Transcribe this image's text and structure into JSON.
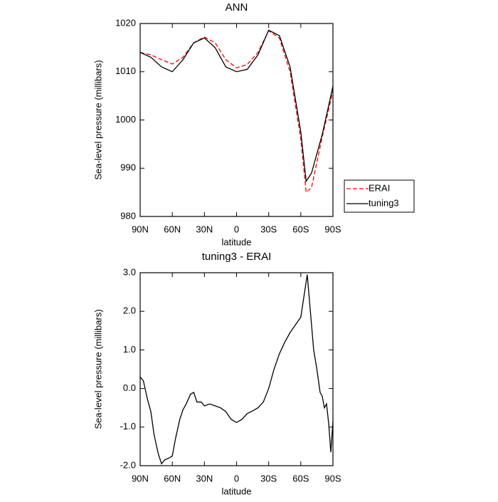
{
  "chart_data": [
    {
      "type": "line",
      "title": "ANN",
      "x_label": "latitude",
      "y_label": "Sea-level pressure (millibars)",
      "x": [
        90,
        80,
        70,
        60,
        50,
        40,
        30,
        20,
        10,
        0,
        -10,
        -20,
        -30,
        -40,
        -50,
        -60,
        -65,
        -70,
        -80,
        -90
      ],
      "xlim": [
        90,
        -90
      ],
      "xticks": [
        {
          "value": 90,
          "label": "90N"
        },
        {
          "value": 60,
          "label": "60N"
        },
        {
          "value": 30,
          "label": "30N"
        },
        0,
        {
          "value": -30,
          "label": "30S"
        },
        {
          "value": -60,
          "label": "60S"
        },
        {
          "value": -90,
          "label": "90S"
        }
      ],
      "ylim": [
        980,
        1020
      ],
      "yticks": [
        980,
        990,
        1000,
        1010,
        1020
      ],
      "legend": "right",
      "series": [
        {
          "name": "ERAI",
          "color": "#ff0000",
          "dashed": true,
          "values": [
            1014,
            1013.5,
            1012.5,
            1011.6,
            1013,
            1016,
            1017.2,
            1016,
            1012.5,
            1010.8,
            1011.5,
            1014,
            1018.5,
            1017,
            1010,
            996,
            985,
            986,
            996.5,
            1006
          ]
        },
        {
          "name": "tuning3",
          "color": "#000000",
          "dashed": false,
          "values": [
            1014,
            1013,
            1011,
            1010,
            1012.5,
            1016,
            1017,
            1015,
            1011,
            1010,
            1010.5,
            1013.5,
            1018.6,
            1017.5,
            1011,
            997.5,
            987.3,
            989,
            997,
            1007
          ]
        }
      ]
    },
    {
      "type": "line",
      "title": "tuning3 - ERAI",
      "x_label": "latitude",
      "y_label": "Sea-level pressure (millibars)",
      "x": [
        90,
        87,
        83,
        80,
        77,
        73,
        70,
        67,
        63,
        60,
        57,
        53,
        50,
        47,
        43,
        40,
        37,
        33,
        30,
        25,
        20,
        15,
        10,
        5,
        0,
        -5,
        -10,
        -15,
        -20,
        -25,
        -30,
        -35,
        -40,
        -45,
        -50,
        -55,
        -60,
        -63,
        -66,
        -68,
        -72,
        -75,
        -78,
        -80,
        -82,
        -84,
        -86,
        -88,
        -90
      ],
      "xlim": [
        90,
        -90
      ],
      "xticks": [
        {
          "value": 90,
          "label": "90N"
        },
        {
          "value": 60,
          "label": "60N"
        },
        {
          "value": 30,
          "label": "30N"
        },
        0,
        {
          "value": -30,
          "label": "30S"
        },
        {
          "value": -60,
          "label": "60S"
        },
        {
          "value": -90,
          "label": "90S"
        }
      ],
      "ylim": [
        -2,
        3
      ],
      "yticks": [
        {
          "value": -2,
          "label": "-2.0"
        },
        {
          "value": -1,
          "label": "-1.0"
        },
        {
          "value": 0,
          "label": "0.0"
        },
        {
          "value": 1,
          "label": "1.0"
        },
        {
          "value": 2,
          "label": "2.0"
        },
        {
          "value": 3,
          "label": "3.0"
        }
      ],
      "color": "#000000",
      "values": [
        0.3,
        0.2,
        -0.3,
        -0.6,
        -1.2,
        -1.7,
        -1.95,
        -1.85,
        -1.8,
        -1.75,
        -1.3,
        -0.8,
        -0.55,
        -0.4,
        -0.15,
        -0.1,
        -0.35,
        -0.35,
        -0.45,
        -0.4,
        -0.45,
        -0.5,
        -0.6,
        -0.8,
        -0.88,
        -0.8,
        -0.65,
        -0.58,
        -0.5,
        -0.35,
        0.0,
        0.5,
        0.9,
        1.2,
        1.45,
        1.65,
        1.85,
        2.4,
        2.95,
        2.3,
        1.0,
        0.5,
        -0.1,
        -0.2,
        -0.5,
        -0.4,
        -0.9,
        -1.65,
        -0.85
      ]
    }
  ]
}
